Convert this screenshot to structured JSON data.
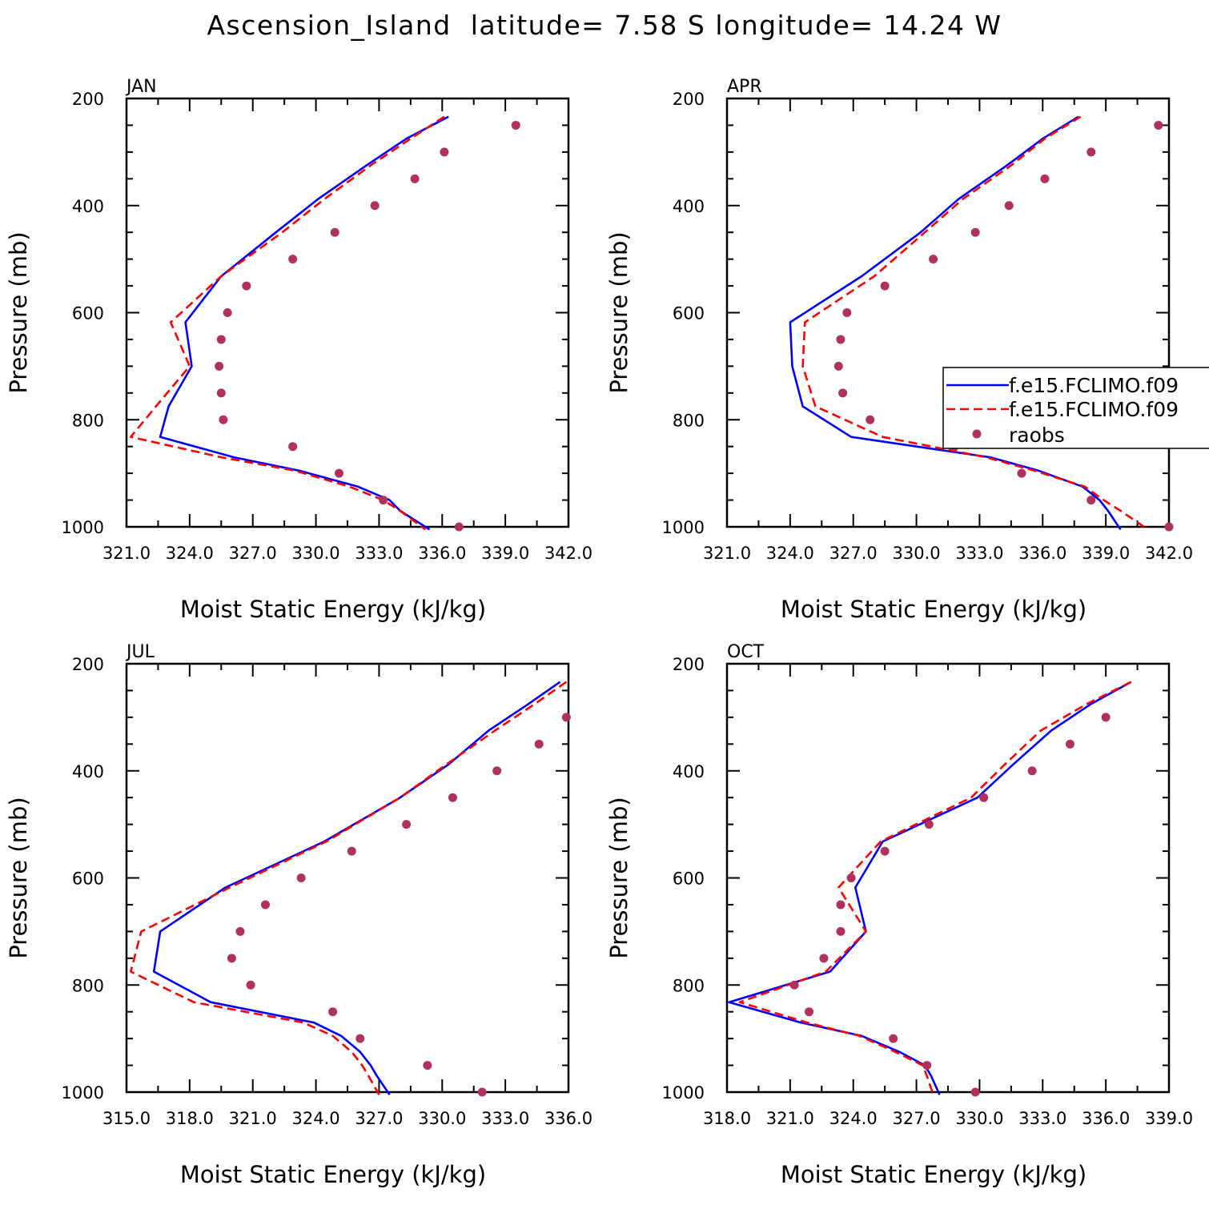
{
  "figure": {
    "title": "Ascension_Island  latitude= 7.58 S longitude= 14.24 W"
  },
  "legend": {
    "entries": [
      {
        "label": "f.e15.FCLIMO.f09",
        "color": "#0000ff",
        "style": "solid"
      },
      {
        "label": "f.e15.FCLIMO.f09",
        "color": "#ff0000",
        "style": "dashed"
      },
      {
        "label": "raobs",
        "color": "#b03060",
        "style": "marker"
      }
    ]
  },
  "colors": {
    "model_a": "#0000ff",
    "model_b": "#ff0000",
    "raobs": "#b03060"
  },
  "chart_data": [
    {
      "type": "line",
      "title": "JAN",
      "xlabel": "Moist Static Energy (kJ/kg)",
      "ylabel": "Pressure (mb)",
      "xlim": [
        321.0,
        342.0
      ],
      "ylim": [
        1000,
        200
      ],
      "y_ticks": [
        200,
        400,
        600,
        800,
        1000
      ],
      "x_ticks": [
        321.0,
        324.0,
        327.0,
        330.0,
        333.0,
        336.0,
        339.0,
        342.0
      ],
      "x_tick_labels": [
        "321.0",
        "324.0",
        "327.0",
        "330.0",
        "333.0",
        "336.0",
        "339.0",
        "342.0"
      ],
      "y_tick_labels": [
        "200",
        "400",
        "600",
        "800",
        "1000"
      ],
      "series": [
        {
          "name": "f.e15.FCLIMO.f09",
          "color": "#0000ff",
          "style": "solid",
          "p": [
            234,
            275,
            325,
            388,
            450,
            532,
            618,
            700,
            775,
            832,
            870,
            895,
            925,
            950,
            970,
            1005
          ],
          "values": [
            336.3,
            334.3,
            332.4,
            330.1,
            328.1,
            325.5,
            323.8,
            324.1,
            323.0,
            322.6,
            326.1,
            329.2,
            332.0,
            333.5,
            334.0,
            335.4
          ]
        },
        {
          "name": "f.e15.FCLIMO.f09",
          "color": "#ff0000",
          "style": "dashed",
          "p": [
            234,
            275,
            325,
            388,
            450,
            532,
            618,
            700,
            775,
            832,
            870,
            895,
            925,
            950,
            970,
            1005
          ],
          "values": [
            336.1,
            334.5,
            332.6,
            330.4,
            328.4,
            325.5,
            323.1,
            324.0,
            322.4,
            321.2,
            325.5,
            329.0,
            331.6,
            333.2,
            334.0,
            335.2
          ]
        }
      ],
      "raobs": {
        "p": [
          250,
          300,
          350,
          400,
          450,
          500,
          550,
          600,
          650,
          700,
          750,
          800,
          850,
          900,
          950,
          1000
        ],
        "values": [
          339.5,
          336.1,
          334.7,
          332.8,
          330.9,
          328.9,
          326.7,
          325.8,
          325.5,
          325.4,
          325.5,
          325.6,
          328.9,
          331.1,
          333.2,
          336.8
        ]
      }
    },
    {
      "type": "line",
      "title": "APR",
      "xlabel": "Moist Static Energy (kJ/kg)",
      "ylabel": "Pressure (mb)",
      "xlim": [
        321.0,
        342.0
      ],
      "ylim": [
        1000,
        200
      ],
      "y_ticks": [
        200,
        400,
        600,
        800,
        1000
      ],
      "x_ticks": [
        321.0,
        324.0,
        327.0,
        330.0,
        333.0,
        336.0,
        339.0,
        342.0
      ],
      "x_tick_labels": [
        "321.0",
        "324.0",
        "327.0",
        "330.0",
        "333.0",
        "336.0",
        "339.0",
        "342.0"
      ],
      "y_tick_labels": [
        "200",
        "400",
        "600",
        "800",
        "1000"
      ],
      "series": [
        {
          "name": "f.e15.FCLIMO.f09",
          "color": "#0000ff",
          "style": "solid",
          "p": [
            234,
            275,
            325,
            388,
            450,
            532,
            618,
            700,
            775,
            832,
            870,
            895,
            925,
            950,
            970,
            1005
          ],
          "values": [
            337.7,
            336.0,
            334.3,
            332.0,
            330.2,
            327.4,
            324.0,
            324.1,
            324.6,
            326.9,
            333.5,
            335.8,
            337.9,
            338.7,
            339.1,
            339.7
          ]
        },
        {
          "name": "f.e15.FCLIMO.f09",
          "color": "#ff0000",
          "style": "dashed",
          "p": [
            234,
            275,
            325,
            388,
            450,
            532,
            618,
            700,
            775,
            832,
            870,
            895,
            925,
            950,
            970,
            1005
          ],
          "values": [
            337.8,
            336.1,
            334.5,
            332.2,
            330.4,
            328.0,
            324.7,
            324.6,
            325.2,
            328.4,
            333.3,
            335.6,
            338.0,
            338.9,
            339.7,
            341.0
          ]
        }
      ],
      "raobs": {
        "p": [
          250,
          300,
          350,
          400,
          450,
          500,
          550,
          600,
          650,
          700,
          750,
          800,
          850,
          900,
          950,
          1000
        ],
        "values": [
          341.5,
          338.3,
          336.1,
          334.4,
          332.8,
          330.8,
          328.5,
          326.7,
          326.4,
          326.3,
          326.5,
          327.8,
          331.8,
          335.0,
          338.3,
          342.0
        ]
      }
    },
    {
      "type": "line",
      "title": "JUL",
      "xlabel": "Moist Static Energy (kJ/kg)",
      "ylabel": "Pressure (mb)",
      "xlim": [
        315.0,
        336.0
      ],
      "ylim": [
        1000,
        200
      ],
      "y_ticks": [
        200,
        400,
        600,
        800,
        1000
      ],
      "x_ticks": [
        315.0,
        318.0,
        321.0,
        324.0,
        327.0,
        330.0,
        333.0,
        336.0
      ],
      "x_tick_labels": [
        "315.0",
        "318.0",
        "321.0",
        "324.0",
        "327.0",
        "330.0",
        "333.0",
        "336.0"
      ],
      "y_tick_labels": [
        "200",
        "400",
        "600",
        "800",
        "1000"
      ],
      "series": [
        {
          "name": "f.e15.FCLIMO.f09",
          "color": "#0000ff",
          "style": "solid",
          "p": [
            234,
            275,
            325,
            388,
            450,
            532,
            618,
            700,
            775,
            832,
            870,
            895,
            925,
            950,
            970,
            1005
          ],
          "values": [
            335.6,
            334.1,
            332.2,
            330.3,
            328.0,
            324.4,
            319.7,
            316.6,
            316.3,
            319.0,
            323.9,
            325.2,
            326.1,
            326.6,
            326.9,
            327.5
          ]
        },
        {
          "name": "f.e15.FCLIMO.f09",
          "color": "#ff0000",
          "style": "dashed",
          "p": [
            234,
            275,
            325,
            388,
            450,
            532,
            618,
            700,
            775,
            832,
            870,
            895,
            925,
            950,
            970,
            1005
          ],
          "values": [
            335.9,
            334.4,
            332.5,
            330.2,
            328.0,
            324.5,
            319.9,
            315.7,
            315.2,
            318.2,
            323.4,
            324.8,
            325.7,
            326.2,
            326.5,
            327.0
          ]
        }
      ],
      "raobs": {
        "p": [
          300,
          350,
          400,
          450,
          500,
          550,
          600,
          650,
          700,
          750,
          800,
          850,
          900,
          950,
          1000
        ],
        "values": [
          335.9,
          334.6,
          332.6,
          330.5,
          328.3,
          325.7,
          323.3,
          321.6,
          320.4,
          320.0,
          320.9,
          324.8,
          326.1,
          329.3,
          331.9
        ]
      }
    },
    {
      "type": "line",
      "title": "OCT",
      "xlabel": "Moist Static Energy (kJ/kg)",
      "ylabel": "Pressure (mb)",
      "xlim": [
        318.0,
        339.0
      ],
      "ylim": [
        1000,
        200
      ],
      "y_ticks": [
        200,
        400,
        600,
        800,
        1000
      ],
      "x_ticks": [
        318.0,
        321.0,
        324.0,
        327.0,
        330.0,
        333.0,
        336.0,
        339.0
      ],
      "x_tick_labels": [
        "318.0",
        "321.0",
        "324.0",
        "327.0",
        "330.0",
        "333.0",
        "336.0",
        "339.0"
      ],
      "y_tick_labels": [
        "200",
        "400",
        "600",
        "800",
        "1000"
      ],
      "series": [
        {
          "name": "f.e15.FCLIMO.f09",
          "color": "#0000ff",
          "style": "solid",
          "p": [
            234,
            275,
            325,
            388,
            450,
            532,
            618,
            700,
            775,
            832,
            870,
            895,
            925,
            950,
            970,
            1005
          ],
          "values": [
            337.2,
            335.3,
            333.4,
            331.6,
            329.9,
            325.4,
            324.1,
            324.6,
            322.9,
            318.1,
            321.5,
            324.4,
            326.2,
            327.4,
            327.7,
            328.1
          ]
        },
        {
          "name": "f.e15.FCLIMO.f09",
          "color": "#ff0000",
          "style": "dashed",
          "p": [
            234,
            275,
            325,
            388,
            450,
            532,
            618,
            700,
            775,
            832,
            870,
            895,
            925,
            950,
            970,
            1005
          ],
          "values": [
            337.2,
            335.1,
            332.9,
            331.2,
            329.6,
            325.3,
            323.3,
            324.6,
            322.7,
            318.6,
            321.8,
            324.3,
            326.0,
            327.3,
            327.5,
            327.8
          ]
        }
      ],
      "raobs": {
        "p": [
          300,
          350,
          400,
          450,
          500,
          550,
          600,
          650,
          700,
          750,
          800,
          850,
          900,
          950,
          1000
        ],
        "values": [
          336.0,
          334.3,
          332.5,
          330.2,
          327.6,
          325.5,
          323.9,
          323.4,
          323.4,
          322.6,
          321.2,
          321.9,
          325.9,
          327.5,
          329.8
        ]
      }
    }
  ]
}
